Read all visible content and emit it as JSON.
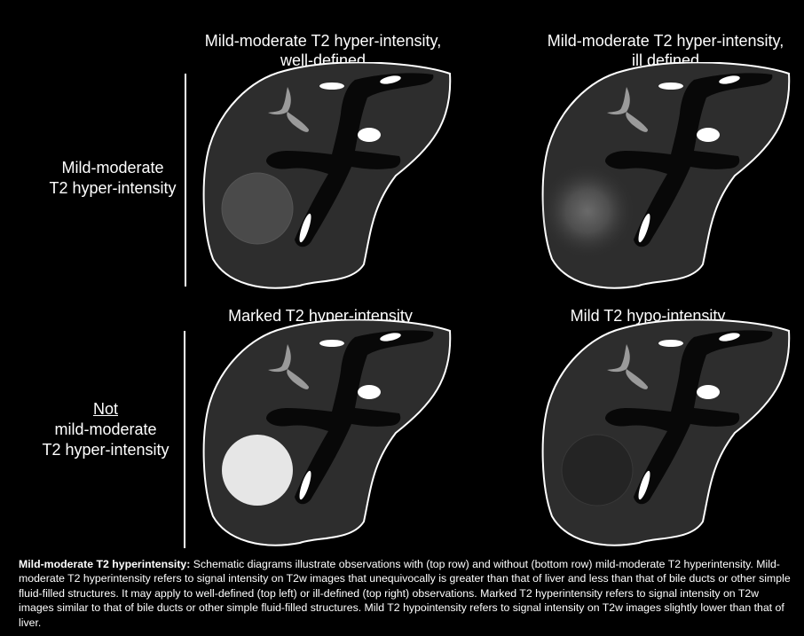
{
  "panels": [
    {
      "title_line1": "Mild-moderate T2 hyper-intensity,",
      "title_line2": "well-defined",
      "lesion": "mild-moderate-well-defined"
    },
    {
      "title_line1": "Mild-moderate T2 hyper-intensity,",
      "title_line2": "ill defined",
      "lesion": "mild-moderate-ill-defined"
    },
    {
      "title_line1": "Marked T2 hyper-intensity",
      "title_line2": "",
      "lesion": "marked"
    },
    {
      "title_line1": "Mild T2 hypo-intensity",
      "title_line2": "",
      "lesion": "mild-hypo"
    }
  ],
  "rows": [
    {
      "line1": "",
      "line2": "Mild-moderate",
      "line3": "T2 hyper-intensity"
    },
    {
      "line1": "Not",
      "line2": "mild-moderate",
      "line3": "T2 hyper-intensity"
    }
  ],
  "caption": {
    "bold": "Mild-moderate T2 hyperintensity:",
    "text": " Schematic diagrams illustrate observations with (top row) and without (bottom row) mild-moderate T2 hyperintensity. Mild-moderate T2 hyperintensity refers to signal intensity on T2w images that unequivocally is greater than that of liver and less than that of bile ducts or other simple fluid-filled structures. It may apply to well-defined (top left) or ill-defined (top right) observations. Marked T2 hyperintensity refers to signal intensity on T2w images similar to that of bile ducts or other simple fluid-filled structures. Mild T2 hypointensity refers to signal intensity on T2w images slightly lower than that of liver."
  },
  "colors": {
    "background": "#000000",
    "liver": "#2d2d2d",
    "outline": "#ffffff",
    "ducts": "#080808",
    "gallbladder": "#9a9a9a",
    "lesion_mild_moderate": "#4a4a4a",
    "lesion_marked": "#e6e6e6",
    "lesion_hypo": "#242424"
  }
}
